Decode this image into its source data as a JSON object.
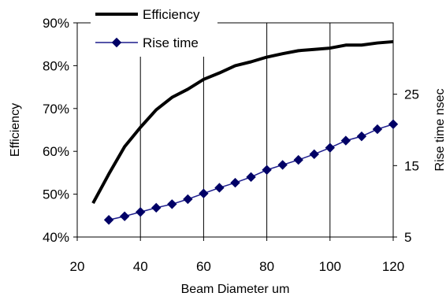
{
  "chart_data": {
    "type": "line",
    "title": "",
    "xlabel": "Beam Diameter  um",
    "ylabel": "Efficiency",
    "y2label": "Rise time nsec",
    "xlim": [
      20,
      120
    ],
    "ylim": [
      0.4,
      0.9
    ],
    "y2lim": [
      5,
      35
    ],
    "x_ticks": [
      20,
      40,
      60,
      80,
      100,
      120
    ],
    "y_ticks": [
      0.4,
      0.5,
      0.6,
      0.7,
      0.8,
      0.9
    ],
    "y_tick_labels": [
      "40%",
      "50%",
      "60%",
      "70%",
      "80%",
      "90%"
    ],
    "y2_ticks": [
      5,
      15,
      25
    ],
    "y2_tick_labels": [
      "5",
      "15",
      "25"
    ],
    "grid": "vertical",
    "legend_position": "top-left",
    "series": [
      {
        "name": "Efficiency",
        "axis": "left",
        "color": "#000000",
        "marker": "none",
        "x": [
          25,
          30,
          35,
          40,
          45,
          50,
          55,
          60,
          65,
          70,
          75,
          80,
          85,
          90,
          95,
          100,
          105,
          110,
          115,
          120
        ],
        "values": [
          0.479,
          0.547,
          0.611,
          0.656,
          0.697,
          0.726,
          0.745,
          0.768,
          0.783,
          0.8,
          0.809,
          0.82,
          0.828,
          0.835,
          0.838,
          0.841,
          0.848,
          0.848,
          0.853,
          0.856
        ]
      },
      {
        "name": "Rise time",
        "axis": "right",
        "color": "#1c1c8c",
        "marker_color": "#000066",
        "marker": "diamond",
        "x": [
          30,
          35,
          40,
          45,
          50,
          55,
          60,
          65,
          70,
          75,
          80,
          85,
          90,
          95,
          100,
          105,
          110,
          115,
          120
        ],
        "values": [
          7.4,
          7.9,
          8.5,
          9.1,
          9.6,
          10.3,
          11.1,
          11.9,
          12.6,
          13.4,
          14.4,
          15.1,
          15.8,
          16.6,
          17.5,
          18.5,
          19.1,
          20.1,
          20.8
        ]
      }
    ]
  }
}
